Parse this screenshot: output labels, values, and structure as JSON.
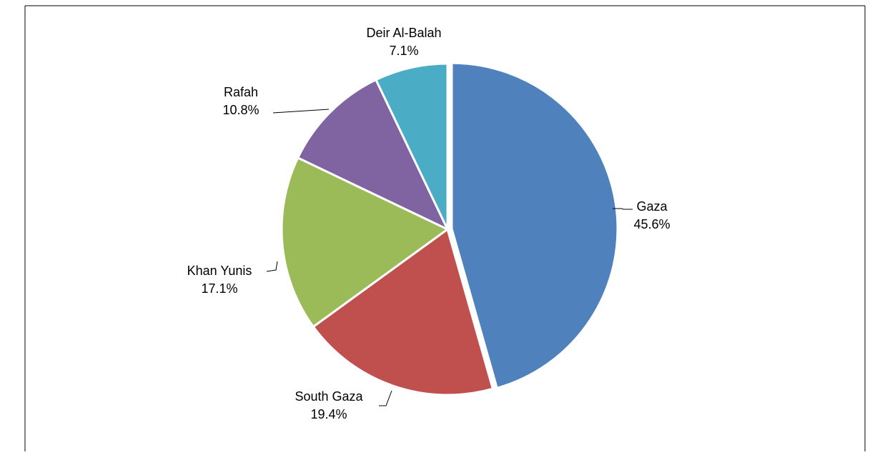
{
  "chart_data": {
    "type": "pie",
    "categories": [
      "Gaza",
      "South Gaza",
      "Khan Yunis",
      "Rafah",
      "Deir Al-Balah"
    ],
    "values": [
      45.6,
      19.4,
      17.1,
      10.8,
      7.1
    ],
    "value_labels": [
      "45.6%",
      "19.4%",
      "17.1%",
      "10.8%",
      "7.1%"
    ],
    "colors": [
      "#4f81bd",
      "#c0504d",
      "#9bbb59",
      "#8064a2",
      "#4bacc6"
    ]
  }
}
